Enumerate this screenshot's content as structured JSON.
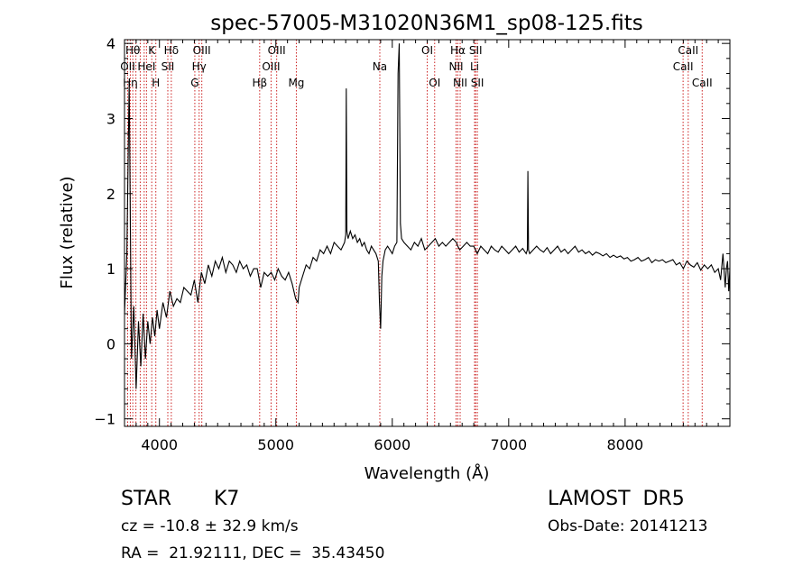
{
  "chart_data": {
    "type": "line",
    "title": "spec-57005-M31020N36M1_sp08-125.fits",
    "xlabel": "Wavelength (Å)",
    "ylabel": "Flux (relative)",
    "xlim": [
      3700,
      8900
    ],
    "ylim": [
      -1.1,
      4.05
    ],
    "x_ticks": [
      4000,
      5000,
      6000,
      7000,
      8000
    ],
    "y_ticks": [
      -1,
      0,
      1,
      2,
      3,
      4
    ],
    "grid": false,
    "line_color": "#000000",
    "marker_color": "#cc2222",
    "series": [
      {
        "x": [
          3700,
          3720,
          3740,
          3760,
          3780,
          3800,
          3820,
          3840,
          3860,
          3880,
          3900,
          3920,
          3940,
          3960,
          3980,
          4000,
          4030,
          4060,
          4090,
          4120,
          4150,
          4180,
          4210,
          4240,
          4270,
          4300,
          4330,
          4360,
          4390,
          4420,
          4450,
          4480,
          4510,
          4540,
          4570,
          4600,
          4630,
          4660,
          4690,
          4720,
          4750,
          4780,
          4810,
          4840,
          4870,
          4900,
          4930,
          4960,
          4990,
          5020,
          5050,
          5080,
          5110,
          5140,
          5170,
          5190,
          5200,
          5230,
          5260,
          5290,
          5320,
          5350,
          5380,
          5410,
          5440,
          5470,
          5500,
          5530,
          5560,
          5590,
          5600,
          5605,
          5610,
          5620,
          5640,
          5660,
          5680,
          5700,
          5720,
          5740,
          5760,
          5780,
          5800,
          5820,
          5840,
          5860,
          5880,
          5890,
          5900,
          5910,
          5920,
          5940,
          5960,
          5980,
          6000,
          6020,
          6040,
          6050,
          6060,
          6070,
          6080,
          6100,
          6130,
          6160,
          6190,
          6220,
          6250,
          6280,
          6310,
          6340,
          6370,
          6400,
          6430,
          6460,
          6490,
          6520,
          6550,
          6563,
          6580,
          6610,
          6640,
          6670,
          6700,
          6730,
          6760,
          6790,
          6820,
          6850,
          6880,
          6910,
          6940,
          6970,
          7000,
          7030,
          7060,
          7090,
          7120,
          7150,
          7160,
          7165,
          7170,
          7180,
          7210,
          7240,
          7270,
          7300,
          7330,
          7360,
          7390,
          7420,
          7450,
          7480,
          7510,
          7540,
          7570,
          7600,
          7630,
          7660,
          7690,
          7720,
          7750,
          7780,
          7810,
          7840,
          7870,
          7900,
          7930,
          7960,
          7990,
          8020,
          8050,
          8080,
          8110,
          8140,
          8170,
          8200,
          8230,
          8260,
          8290,
          8320,
          8350,
          8380,
          8410,
          8440,
          8470,
          8500,
          8530,
          8560,
          8590,
          8620,
          8650,
          8680,
          8710,
          8740,
          8770,
          8800,
          8820,
          8840,
          8860,
          8870,
          8880,
          8890,
          8900
        ],
        "y": [
          0.4,
          1.2,
          3.5,
          -0.2,
          0.5,
          -0.6,
          0.3,
          -0.3,
          0.4,
          -0.2,
          0.3,
          0.0,
          0.35,
          0.1,
          0.45,
          0.2,
          0.55,
          0.35,
          0.7,
          0.5,
          0.6,
          0.55,
          0.75,
          0.7,
          0.65,
          0.85,
          0.55,
          0.95,
          0.8,
          1.05,
          0.9,
          1.1,
          1.0,
          1.15,
          0.95,
          1.1,
          1.05,
          0.95,
          1.1,
          1.0,
          1.05,
          0.9,
          1.0,
          1.0,
          0.75,
          0.95,
          0.9,
          0.95,
          0.85,
          1.0,
          0.9,
          0.85,
          0.95,
          0.8,
          0.6,
          0.55,
          0.75,
          0.9,
          1.05,
          1.0,
          1.15,
          1.1,
          1.25,
          1.2,
          1.3,
          1.2,
          1.35,
          1.3,
          1.25,
          1.35,
          1.45,
          3.4,
          1.5,
          1.4,
          1.5,
          1.4,
          1.45,
          1.35,
          1.4,
          1.3,
          1.35,
          1.25,
          1.2,
          1.3,
          1.25,
          1.2,
          1.1,
          0.55,
          0.2,
          0.9,
          1.1,
          1.25,
          1.3,
          1.25,
          1.2,
          1.3,
          1.35,
          3.6,
          4.0,
          1.6,
          1.4,
          1.35,
          1.3,
          1.25,
          1.35,
          1.3,
          1.4,
          1.25,
          1.3,
          1.35,
          1.4,
          1.3,
          1.35,
          1.3,
          1.35,
          1.4,
          1.35,
          1.3,
          1.25,
          1.3,
          1.35,
          1.3,
          1.3,
          1.2,
          1.3,
          1.25,
          1.2,
          1.3,
          1.25,
          1.22,
          1.3,
          1.25,
          1.2,
          1.25,
          1.3,
          1.22,
          1.27,
          1.2,
          1.25,
          2.3,
          1.25,
          1.2,
          1.25,
          1.3,
          1.25,
          1.22,
          1.28,
          1.2,
          1.25,
          1.3,
          1.22,
          1.26,
          1.2,
          1.25,
          1.3,
          1.22,
          1.25,
          1.2,
          1.23,
          1.18,
          1.22,
          1.2,
          1.17,
          1.2,
          1.15,
          1.18,
          1.15,
          1.17,
          1.13,
          1.15,
          1.1,
          1.12,
          1.15,
          1.1,
          1.12,
          1.15,
          1.08,
          1.12,
          1.1,
          1.12,
          1.08,
          1.1,
          1.12,
          1.05,
          1.08,
          1.0,
          1.1,
          1.05,
          1.02,
          1.08,
          0.98,
          1.05,
          1.0,
          1.05,
          0.95,
          1.0,
          0.85,
          1.2,
          0.75,
          1.0,
          1.1,
          0.7,
          1.0
        ]
      }
    ],
    "lines": [
      {
        "x": 3727,
        "label": "OII",
        "row": 2
      },
      {
        "x": 3750,
        "label": "Hη",
        "row": 3
      },
      {
        "x": 3771,
        "label": "Hθ",
        "row": 1
      },
      {
        "x": 3798,
        "label": "",
        "row": 0
      },
      {
        "x": 3835,
        "label": "",
        "row": 0
      },
      {
        "x": 3869,
        "label": "",
        "row": 0
      },
      {
        "x": 3889,
        "label": "HeI",
        "row": 2
      },
      {
        "x": 3934,
        "label": "K",
        "row": 1
      },
      {
        "x": 3969,
        "label": "H",
        "row": 3
      },
      {
        "x": 4072,
        "label": "SII",
        "row": 2
      },
      {
        "x": 4102,
        "label": "Hδ",
        "row": 1
      },
      {
        "x": 4304,
        "label": "G",
        "row": 3
      },
      {
        "x": 4341,
        "label": "Hγ",
        "row": 2
      },
      {
        "x": 4364,
        "label": "OIII",
        "row": 1
      },
      {
        "x": 4861,
        "label": "Hβ",
        "row": 3
      },
      {
        "x": 4959,
        "label": "OIII",
        "row": 2
      },
      {
        "x": 5007,
        "label": "OIII",
        "row": 1
      },
      {
        "x": 5176,
        "label": "Mg",
        "row": 3
      },
      {
        "x": 5893,
        "label": "Na",
        "row": 2
      },
      {
        "x": 6300,
        "label": "OI",
        "row": 1
      },
      {
        "x": 6364,
        "label": "OI",
        "row": 3
      },
      {
        "x": 6548,
        "label": "NII",
        "row": 2
      },
      {
        "x": 6563,
        "label": "Hα",
        "row": 1
      },
      {
        "x": 6583,
        "label": "NII",
        "row": 3
      },
      {
        "x": 6707,
        "label": "Li",
        "row": 2
      },
      {
        "x": 6716,
        "label": "SII",
        "row": 1
      },
      {
        "x": 6731,
        "label": "SII",
        "row": 3
      },
      {
        "x": 8498,
        "label": "CaII",
        "row": 2
      },
      {
        "x": 8542,
        "label": "CaII",
        "row": 1
      },
      {
        "x": 8662,
        "label": "CaII",
        "row": 3
      }
    ]
  },
  "info": {
    "class_label": "STAR",
    "subclass": "K7",
    "survey": "LAMOST  DR5",
    "cz_text": "cz = -10.8 ± 32.9 km/s",
    "obs_date": "Obs-Date: 20141213",
    "coords": "RA =  21.92111, DEC =  35.43450"
  }
}
